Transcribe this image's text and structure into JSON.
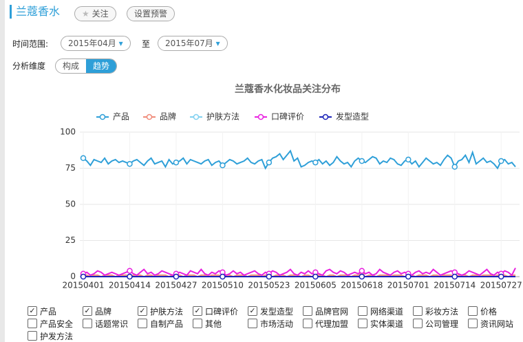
{
  "header": {
    "title": "兰蔻香水",
    "follow": "关注",
    "alert": "设置预警"
  },
  "filters": {
    "time_label": "时间范围:",
    "start": "2015年04月",
    "to": "至",
    "end": "2015年07月",
    "dimension_label": "分析维度",
    "options": [
      "构成",
      "趋势"
    ],
    "active": 1
  },
  "chart_data": {
    "type": "line",
    "title": "兰蔻香水化妆品关注分布",
    "categories": [
      "20150401",
      null,
      null,
      null,
      null,
      null,
      null,
      null,
      null,
      null,
      null,
      null,
      null,
      "20150414",
      null,
      null,
      null,
      null,
      null,
      null,
      null,
      null,
      null,
      null,
      null,
      null,
      "20150427",
      null,
      null,
      null,
      null,
      null,
      null,
      null,
      null,
      null,
      null,
      null,
      null,
      "20150510",
      null,
      null,
      null,
      null,
      null,
      null,
      null,
      null,
      null,
      null,
      null,
      null,
      "20150523",
      null,
      null,
      null,
      null,
      null,
      null,
      null,
      null,
      null,
      null,
      null,
      null,
      "20150605",
      null,
      null,
      null,
      null,
      null,
      null,
      null,
      null,
      null,
      null,
      null,
      null,
      "20150618",
      null,
      null,
      null,
      null,
      null,
      null,
      null,
      null,
      null,
      null,
      null,
      null,
      "20150701",
      null,
      null,
      null,
      null,
      null,
      null,
      null,
      null,
      null,
      null,
      null,
      null,
      "20150714",
      null,
      null,
      null,
      null,
      null,
      null,
      null,
      null,
      null,
      null,
      null,
      null,
      "20150727",
      null,
      null,
      null,
      null
    ],
    "series": [
      {
        "name": "产品",
        "color": "#2e9fd8",
        "values": [
          82,
          80,
          77,
          81,
          80,
          79,
          82,
          78,
          80,
          81,
          79,
          80,
          79,
          78,
          80,
          81,
          79,
          77,
          80,
          82,
          78,
          79,
          80,
          76,
          81,
          78,
          79,
          80,
          82,
          78,
          81,
          80,
          79,
          78,
          80,
          81,
          77,
          79,
          80,
          77,
          79,
          81,
          80,
          78,
          79,
          80,
          82,
          79,
          78,
          80,
          81,
          75,
          79,
          82,
          83,
          85,
          81,
          84,
          87,
          80,
          82,
          76,
          77,
          79,
          80,
          79,
          81,
          78,
          80,
          77,
          79,
          83,
          80,
          78,
          79,
          76,
          80,
          82,
          80,
          79,
          81,
          83,
          82,
          78,
          80,
          79,
          82,
          81,
          78,
          77,
          80,
          81,
          78,
          80,
          76,
          79,
          82,
          80,
          78,
          79,
          77,
          81,
          84,
          82,
          76,
          80,
          81,
          84,
          79,
          86,
          78,
          80,
          82,
          79,
          80,
          78,
          75,
          80,
          81,
          78,
          79,
          76
        ]
      },
      {
        "name": "品牌",
        "color": "#f08a78",
        "values": [
          1,
          1,
          0,
          1,
          1,
          0,
          1,
          1,
          1,
          0,
          1,
          1,
          1,
          0,
          1,
          1,
          1,
          0,
          1,
          1,
          0,
          1,
          1,
          1,
          0,
          1,
          1,
          1,
          0,
          1,
          1,
          1,
          0,
          1,
          1,
          0,
          1,
          1,
          1,
          0,
          1,
          1,
          0,
          1,
          1,
          1,
          0,
          1,
          1,
          1,
          0,
          1,
          1,
          0,
          1,
          1,
          1,
          0,
          1,
          1,
          1,
          0,
          1,
          1,
          0,
          1,
          1,
          1,
          0,
          1,
          1,
          0,
          1,
          1,
          1,
          0,
          1,
          1,
          1,
          0,
          1,
          1,
          0,
          1,
          1,
          1,
          0,
          1,
          1,
          1,
          0,
          1,
          1,
          0,
          1,
          1,
          1,
          0,
          1,
          1,
          0,
          1,
          1,
          1,
          0,
          1,
          1,
          1,
          0,
          1,
          1,
          0,
          1,
          1,
          1,
          0,
          1,
          1,
          1,
          0,
          1,
          1
        ]
      },
      {
        "name": "护肤方法",
        "color": "#7fd0f0",
        "values": [
          0,
          0,
          0,
          0,
          0,
          0,
          0,
          0,
          0,
          0,
          0,
          0,
          0,
          0,
          0,
          0,
          0,
          0,
          0,
          0,
          0,
          0,
          0,
          0,
          0,
          0,
          0,
          0,
          0,
          0,
          0,
          0,
          0,
          0,
          0,
          0,
          0,
          0,
          0,
          0,
          0,
          0,
          0,
          0,
          0,
          0,
          0,
          0,
          0,
          0,
          0,
          0,
          0,
          0,
          0,
          0,
          0,
          0,
          0,
          0,
          0,
          0,
          0,
          0,
          0,
          0,
          0,
          0,
          0,
          0,
          0,
          0,
          0,
          0,
          0,
          0,
          0,
          0,
          0,
          0,
          0,
          0,
          0,
          0,
          0,
          0,
          0,
          0,
          0,
          0,
          0,
          0,
          0,
          0,
          0,
          0,
          0,
          0,
          0,
          0,
          0,
          0,
          0,
          0,
          0,
          0,
          0,
          0,
          0,
          0,
          0,
          0,
          0,
          0,
          0,
          0,
          0,
          0,
          0,
          0,
          0,
          0
        ]
      },
      {
        "name": "口碑评价",
        "color": "#e81ee0",
        "values": [
          2,
          3,
          1,
          2,
          4,
          3,
          1,
          2,
          3,
          2,
          1,
          2,
          3,
          4,
          2,
          1,
          3,
          5,
          2,
          3,
          1,
          2,
          4,
          3,
          2,
          1,
          2,
          3,
          2,
          1,
          4,
          3,
          2,
          5,
          2,
          1,
          3,
          2,
          4,
          3,
          1,
          2,
          4,
          2,
          3,
          1,
          2,
          3,
          4,
          2,
          1,
          3,
          2,
          4,
          3,
          1,
          2,
          3,
          5,
          2,
          1,
          3,
          2,
          4,
          2,
          3,
          2,
          1,
          4,
          5,
          3,
          2,
          4,
          3,
          1,
          2,
          3,
          2,
          4,
          2,
          3,
          1,
          2,
          5,
          3,
          2,
          1,
          3,
          4,
          2,
          3,
          2,
          1,
          3,
          4,
          2,
          3,
          2,
          5,
          3,
          1,
          2,
          3,
          4,
          3,
          2,
          1,
          2,
          4,
          3,
          2,
          1,
          3,
          5,
          2,
          1,
          3,
          2,
          4,
          3,
          1,
          6
        ]
      },
      {
        "name": "发型造型",
        "color": "#1a22b8",
        "values": [
          0,
          0,
          0,
          0,
          0,
          0,
          0,
          0,
          0,
          0,
          0,
          0,
          0,
          0,
          0,
          0,
          0,
          0,
          0,
          0,
          0,
          0,
          0,
          0,
          0,
          0,
          0,
          0,
          0,
          0,
          0,
          0,
          0,
          0,
          0,
          0,
          0,
          0,
          0,
          0,
          0,
          0,
          0,
          0,
          0,
          0,
          0,
          0,
          0,
          0,
          0,
          0,
          0,
          0,
          0,
          0,
          0,
          0,
          0,
          0,
          0,
          0,
          0,
          0,
          0,
          0,
          0,
          0,
          0,
          0,
          0,
          0,
          0,
          0,
          0,
          0,
          0,
          0,
          0,
          0,
          0,
          0,
          0,
          0,
          0,
          0,
          0,
          0,
          0,
          0,
          0,
          0,
          0,
          0,
          0,
          0,
          0,
          0,
          0,
          0,
          0,
          0,
          0,
          0,
          0,
          0,
          0,
          0,
          0,
          0,
          0,
          0,
          0,
          0,
          0,
          0,
          0,
          0,
          0,
          0,
          0,
          0
        ]
      }
    ],
    "ylim": [
      0,
      100
    ],
    "yticks": [
      0,
      25,
      50,
      75,
      100
    ],
    "grid": true
  },
  "checkboxes": [
    {
      "label": "产品",
      "checked": true
    },
    {
      "label": "品牌",
      "checked": true
    },
    {
      "label": "护肤方法",
      "checked": true
    },
    {
      "label": "口碑评价",
      "checked": true
    },
    {
      "label": "发型造型",
      "checked": true
    },
    {
      "label": "品牌官网",
      "checked": false
    },
    {
      "label": "网络渠道",
      "checked": false
    },
    {
      "label": "彩妆方法",
      "checked": false
    },
    {
      "label": "价格",
      "checked": false
    },
    {
      "label": "产品安全",
      "checked": false
    },
    {
      "label": "话题常识",
      "checked": false
    },
    {
      "label": "自制产品",
      "checked": false
    },
    {
      "label": "其他",
      "checked": false
    },
    {
      "label": "市场活动",
      "checked": false
    },
    {
      "label": "代理加盟",
      "checked": false
    },
    {
      "label": "实体渠道",
      "checked": false
    },
    {
      "label": "公司管理",
      "checked": false
    },
    {
      "label": "资讯网站",
      "checked": false
    },
    {
      "label": "护发方法",
      "checked": false
    }
  ]
}
